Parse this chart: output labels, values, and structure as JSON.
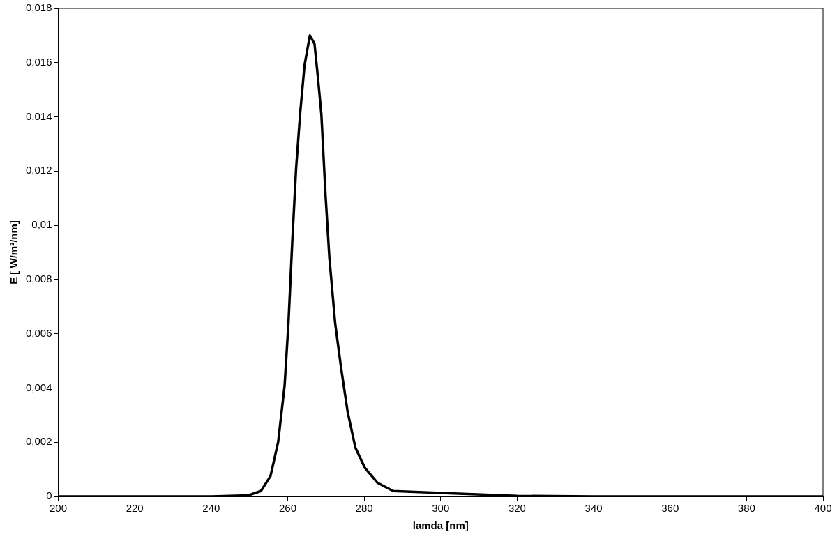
{
  "chart_data": {
    "type": "line",
    "xlabel": "lamda [nm]",
    "ylabel": "E [ W/m²/nm]",
    "xlim": [
      200,
      400
    ],
    "xticks": [
      200,
      220,
      240,
      260,
      280,
      300,
      320,
      340,
      360,
      380,
      400
    ],
    "ylim": [
      0,
      0.018
    ],
    "yticks": [
      {
        "value": 0,
        "label": "0"
      },
      {
        "value": 0.002,
        "label": "0,002"
      },
      {
        "value": 0.004,
        "label": "0,004"
      },
      {
        "value": 0.006,
        "label": "0,006"
      },
      {
        "value": 0.008,
        "label": "0,008"
      },
      {
        "value": 0.01,
        "label": "0,01"
      },
      {
        "value": 0.012,
        "label": "0,012"
      },
      {
        "value": 0.014,
        "label": "0,014"
      },
      {
        "value": 0.016,
        "label": "0,016"
      },
      {
        "value": 0.018,
        "label": "0,018"
      }
    ],
    "grid": false,
    "legend": false,
    "marker": "none",
    "line_style": "solid",
    "series": [
      {
        "color": "#000000",
        "x": [
          200,
          210,
          220,
          230,
          240,
          249.7,
          253,
          255.5,
          257.5,
          259.2,
          260.2,
          261.2,
          262.2,
          263.3,
          264.4,
          265.8,
          267,
          267.8,
          268.8,
          269.9,
          270.9,
          272.4,
          274,
          275.7,
          277.7,
          280.2,
          283.5,
          287.6,
          300,
          320,
          340,
          360,
          380,
          400
        ],
        "values": [
          0,
          0,
          0,
          0,
          0,
          4e-05,
          0.0002,
          0.00075,
          0.002,
          0.0041,
          0.0064,
          0.0094,
          0.0121,
          0.0142,
          0.0159,
          0.017,
          0.0167,
          0.0156,
          0.0141,
          0.0111,
          0.0088,
          0.0064,
          0.0047,
          0.0031,
          0.0018,
          0.00105,
          0.0005,
          0.0002,
          0.00013,
          2e-05,
          0,
          0,
          0,
          0
        ]
      }
    ]
  }
}
